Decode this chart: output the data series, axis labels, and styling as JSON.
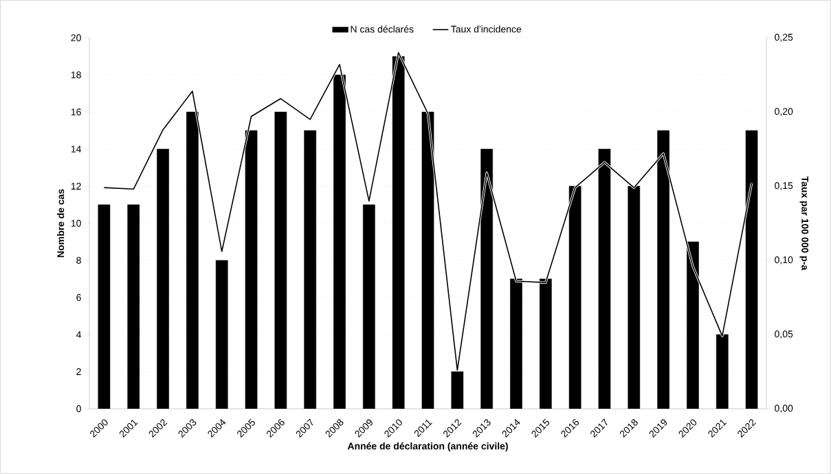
{
  "chart_data": {
    "type": "bar",
    "xlabel": "Année de déclaration (année civile)",
    "ylabel": "Nombre de cas",
    "y2label": "Taux par 100 000 p-a",
    "categories": [
      "2000",
      "2001",
      "2002",
      "2003",
      "2004",
      "2005",
      "2006",
      "2007",
      "2008",
      "2009",
      "2010",
      "2011",
      "2012",
      "2013",
      "2014",
      "2015",
      "2016",
      "2017",
      "2018",
      "2019",
      "2020",
      "2021",
      "2022"
    ],
    "series": [
      {
        "name": "N cas déclarés",
        "color": "#000000",
        "values": [
          11,
          11,
          14,
          16,
          8,
          15,
          16,
          15,
          18,
          11,
          19,
          16,
          2,
          14,
          7,
          7,
          12,
          14,
          12,
          15,
          9,
          4,
          15
        ]
      },
      {
        "name": "Taux d'incidence",
        "type": "line",
        "axis": "y2",
        "color": "#000000",
        "marker": "none",
        "values": [
          0.149,
          0.148,
          0.188,
          0.214,
          0.106,
          0.197,
          0.209,
          0.195,
          0.232,
          0.14,
          0.24,
          0.199,
          0.026,
          0.159,
          0.086,
          0.085,
          0.149,
          0.166,
          0.149,
          0.172,
          0.096,
          0.049,
          0.152
        ]
      }
    ],
    "ylim": [
      0,
      20
    ],
    "yticks": [
      0,
      2,
      4,
      6,
      8,
      10,
      12,
      14,
      16,
      18,
      20
    ],
    "y2lim": [
      0,
      0.25
    ],
    "y2ticks": [
      {
        "value": 0,
        "label": "0,00"
      },
      {
        "value": 0.05,
        "label": "0,05"
      },
      {
        "value": 0.1,
        "label": "0,10"
      },
      {
        "value": 0.15,
        "label": "0,15"
      },
      {
        "value": 0.2,
        "label": "0,20"
      },
      {
        "value": 0.25,
        "label": "0,25"
      }
    ],
    "grid": "y",
    "legend": "top"
  }
}
